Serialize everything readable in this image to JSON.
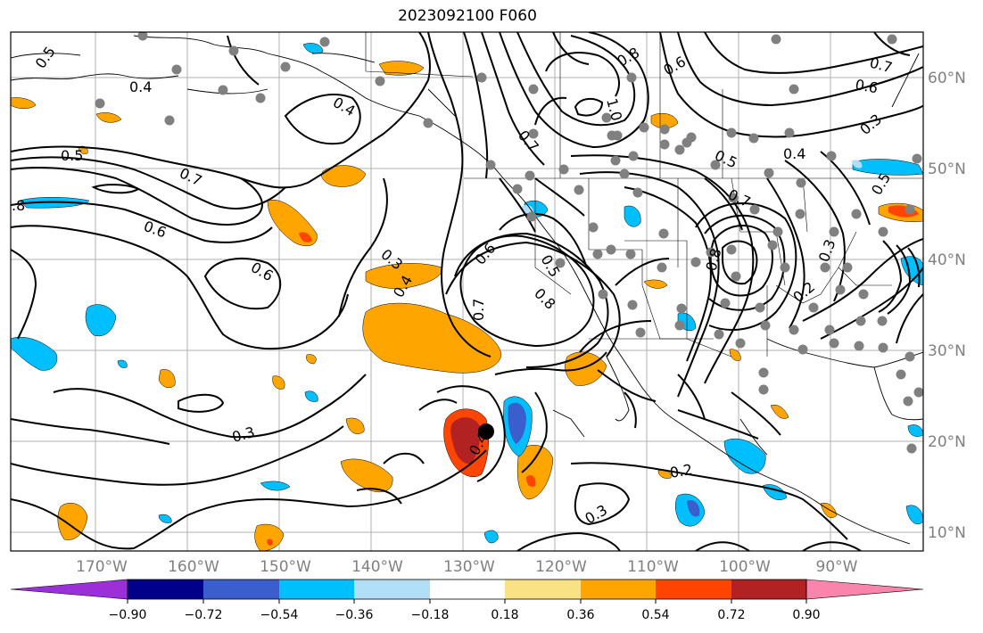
{
  "title": "2023092100 F060",
  "map": {
    "lon_ticks": [
      "170°W",
      "160°W",
      "150°W",
      "140°W",
      "130°W",
      "120°W",
      "110°W",
      "100°W",
      "90°W"
    ],
    "lat_ticks": [
      "60°N",
      "50°N",
      "40°N",
      "30°N",
      "20°N",
      "10°N"
    ],
    "grid": true,
    "contour_labels": [
      "0.5",
      "0.4",
      "0.4",
      "0.5",
      "0.7",
      ".8",
      "0.6",
      "0.6",
      "0.3",
      "0.4",
      "0.6",
      "0.7",
      "0.5",
      "0.8",
      "0.8",
      "0.6",
      "1.0",
      "0.7",
      "0.5",
      "0.4",
      "0.3",
      "0.7",
      "0.8",
      "0.3",
      "0.2",
      "0.3",
      "0.4",
      "0.2",
      "0.3",
      "0.7",
      "0.6",
      "0.5"
    ],
    "storm_marker": "filled-circle"
  },
  "colorbar": {
    "tick_labels": [
      "−0.90",
      "−0.72",
      "−0.54",
      "−0.36",
      "−0.18",
      "0.18",
      "0.36",
      "0.54",
      "0.72",
      "0.90"
    ],
    "colors": [
      "#9b30d8",
      "#00008b",
      "#3a5fcd",
      "#00bfff",
      "#b0dff7",
      "#ffffff",
      "#f9e283",
      "#ffa500",
      "#ff4500",
      "#b22222",
      "#f984ac"
    ]
  }
}
